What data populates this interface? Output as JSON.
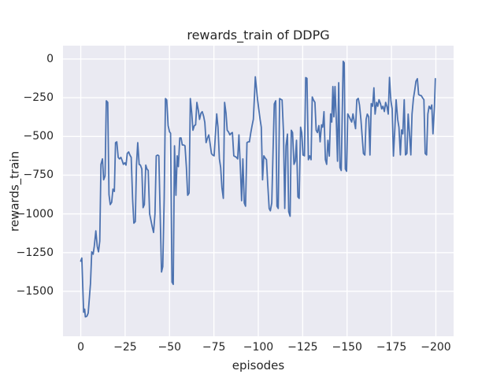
{
  "figure": {
    "title": "rewards_train of DDPG",
    "xlabel": "episodes",
    "ylabel": "rewards_train"
  },
  "colors": {
    "figure_background": "#ffffff",
    "axes_background": "#eaeaf2",
    "grid": "#ffffff",
    "line": "#4c72b0",
    "text": "#262626"
  },
  "chart_data": {
    "type": "line",
    "title": "rewards_train of DDPG",
    "xlabel": "episodes",
    "ylabel": "rewards_train",
    "series_name": "rewards_train",
    "legend": false,
    "grid": true,
    "xlim": [
      -10,
      210
    ],
    "ylim": [
      -1790,
      86
    ],
    "xticks": [
      0,
      25,
      50,
      75,
      100,
      125,
      150,
      175,
      200
    ],
    "yticks": [
      0,
      -250,
      -500,
      -750,
      -1000,
      -1250,
      -1500
    ],
    "points": [
      [
        0,
        -1305
      ],
      [
        0.6,
        -1285
      ],
      [
        1.6,
        -1635
      ],
      [
        2.2,
        -1615
      ],
      [
        2.6,
        -1665
      ],
      [
        3.5,
        -1660
      ],
      [
        4.2,
        -1640
      ],
      [
        5.5,
        -1450
      ],
      [
        6.2,
        -1245
      ],
      [
        7,
        -1260
      ],
      [
        7.6,
        -1210
      ],
      [
        8.5,
        -1110
      ],
      [
        9.3,
        -1210
      ],
      [
        10,
        -1245
      ],
      [
        10.7,
        -1175
      ],
      [
        11.4,
        -680
      ],
      [
        12.2,
        -645
      ],
      [
        12.9,
        -780
      ],
      [
        13.7,
        -755
      ],
      [
        14.4,
        -270
      ],
      [
        15.2,
        -280
      ],
      [
        15.9,
        -875
      ],
      [
        16.6,
        -940
      ],
      [
        17.4,
        -925
      ],
      [
        18.1,
        -840
      ],
      [
        18.9,
        -855
      ],
      [
        19.6,
        -540
      ],
      [
        20.3,
        -535
      ],
      [
        21.1,
        -635
      ],
      [
        21.8,
        -645
      ],
      [
        22.6,
        -635
      ],
      [
        23.3,
        -655
      ],
      [
        24,
        -680
      ],
      [
        24.8,
        -670
      ],
      [
        25.5,
        -685
      ],
      [
        26.2,
        -610
      ],
      [
        27,
        -600
      ],
      [
        27.7,
        -620
      ],
      [
        28.4,
        -635
      ],
      [
        29.2,
        -905
      ],
      [
        29.9,
        -1060
      ],
      [
        30.7,
        -1050
      ],
      [
        31.4,
        -685
      ],
      [
        32.1,
        -540
      ],
      [
        32.9,
        -680
      ],
      [
        33.6,
        -685
      ],
      [
        34.4,
        -710
      ],
      [
        35.1,
        -960
      ],
      [
        35.8,
        -940
      ],
      [
        36.6,
        -685
      ],
      [
        37.3,
        -710
      ],
      [
        38,
        -720
      ],
      [
        38.8,
        -1000
      ],
      [
        40.3,
        -1085
      ],
      [
        41,
        -1120
      ],
      [
        41.8,
        -1000
      ],
      [
        42.5,
        -625
      ],
      [
        43.3,
        -620
      ],
      [
        44,
        -625
      ],
      [
        45.5,
        -1375
      ],
      [
        46.2,
        -1340
      ],
      [
        47,
        -900
      ],
      [
        47.7,
        -255
      ],
      [
        48.4,
        -265
      ],
      [
        49.2,
        -430
      ],
      [
        50,
        -470
      ],
      [
        50.6,
        -480
      ],
      [
        51.4,
        -1440
      ],
      [
        52.1,
        -1455
      ],
      [
        52.8,
        -560
      ],
      [
        53.6,
        -880
      ],
      [
        54.3,
        -625
      ],
      [
        55,
        -695
      ],
      [
        55.8,
        -510
      ],
      [
        56.5,
        -510
      ],
      [
        57.2,
        -555
      ],
      [
        58,
        -555
      ],
      [
        58.7,
        -560
      ],
      [
        59.5,
        -700
      ],
      [
        60.2,
        -880
      ],
      [
        61,
        -865
      ],
      [
        61.7,
        -255
      ],
      [
        62.5,
        -350
      ],
      [
        63.2,
        -460
      ],
      [
        64,
        -430
      ],
      [
        64.7,
        -425
      ],
      [
        65.4,
        -280
      ],
      [
        66.2,
        -330
      ],
      [
        66.9,
        -390
      ],
      [
        67.7,
        -350
      ],
      [
        68.4,
        -340
      ],
      [
        69.2,
        -370
      ],
      [
        69.9,
        -410
      ],
      [
        70.6,
        -540
      ],
      [
        71.4,
        -510
      ],
      [
        72.1,
        -490
      ],
      [
        72.9,
        -550
      ],
      [
        73.6,
        -610
      ],
      [
        74.3,
        -620
      ],
      [
        75.1,
        -625
      ],
      [
        75.8,
        -500
      ],
      [
        76.6,
        -355
      ],
      [
        77.3,
        -440
      ],
      [
        78.1,
        -645
      ],
      [
        78.8,
        -700
      ],
      [
        79.5,
        -830
      ],
      [
        80.3,
        -900
      ],
      [
        81,
        -280
      ],
      [
        81.8,
        -350
      ],
      [
        82.5,
        -460
      ],
      [
        83.2,
        -470
      ],
      [
        84,
        -490
      ],
      [
        84.7,
        -480
      ],
      [
        85.4,
        -475
      ],
      [
        86.2,
        -625
      ],
      [
        86.9,
        -630
      ],
      [
        87.7,
        -635
      ],
      [
        88.4,
        -645
      ],
      [
        89.1,
        -490
      ],
      [
        89.9,
        -700
      ],
      [
        90.6,
        -915
      ],
      [
        91.3,
        -645
      ],
      [
        92.1,
        -930
      ],
      [
        92.8,
        -950
      ],
      [
        93.6,
        -540
      ],
      [
        94.3,
        -535
      ],
      [
        95,
        -535
      ],
      [
        95.8,
        -475
      ],
      [
        96.5,
        -430
      ],
      [
        97.2,
        -390
      ],
      [
        98,
        -200
      ],
      [
        98.3,
        -115
      ],
      [
        99,
        -190
      ],
      [
        99.5,
        -255
      ],
      [
        100.2,
        -320
      ],
      [
        101,
        -390
      ],
      [
        101.7,
        -440
      ],
      [
        102.4,
        -780
      ],
      [
        103.1,
        -625
      ],
      [
        103.9,
        -640
      ],
      [
        104.6,
        -650
      ],
      [
        105.3,
        -800
      ],
      [
        106.1,
        -965
      ],
      [
        106.8,
        -980
      ],
      [
        107.6,
        -930
      ],
      [
        108.3,
        -600
      ],
      [
        109,
        -290
      ],
      [
        109.8,
        -270
      ],
      [
        110.5,
        -950
      ],
      [
        111.2,
        -965
      ],
      [
        112,
        -255
      ],
      [
        112.7,
        -260
      ],
      [
        113.4,
        -265
      ],
      [
        114.2,
        -475
      ],
      [
        114.9,
        -965
      ],
      [
        115.6,
        -560
      ],
      [
        116.4,
        -485
      ],
      [
        117.1,
        -985
      ],
      [
        117.9,
        -1015
      ],
      [
        118.6,
        -460
      ],
      [
        119.3,
        -475
      ],
      [
        120.1,
        -680
      ],
      [
        120.8,
        -660
      ],
      [
        121.5,
        -525
      ],
      [
        122.3,
        -890
      ],
      [
        123,
        -900
      ],
      [
        123.8,
        -440
      ],
      [
        124.5,
        -475
      ],
      [
        125.2,
        -620
      ],
      [
        126,
        -625
      ],
      [
        126.7,
        -120
      ],
      [
        127.4,
        -125
      ],
      [
        128.2,
        -650
      ],
      [
        128.9,
        -625
      ],
      [
        129.7,
        -650
      ],
      [
        130.4,
        -245
      ],
      [
        131.1,
        -265
      ],
      [
        131.9,
        -280
      ],
      [
        132.6,
        -460
      ],
      [
        133.3,
        -475
      ],
      [
        134.1,
        -430
      ],
      [
        134.8,
        -535
      ],
      [
        135.6,
        -425
      ],
      [
        136.3,
        -440
      ],
      [
        137,
        -340
      ],
      [
        137.8,
        -650
      ],
      [
        138.5,
        -680
      ],
      [
        139.2,
        -525
      ],
      [
        140,
        -627
      ],
      [
        140.7,
        -355
      ],
      [
        141.4,
        -407
      ],
      [
        142,
        -178
      ],
      [
        142.6,
        -373
      ],
      [
        143.2,
        -178
      ],
      [
        143.9,
        -390
      ],
      [
        144.6,
        -660
      ],
      [
        145.3,
        -153
      ],
      [
        146,
        -700
      ],
      [
        146.7,
        -720
      ],
      [
        147.8,
        -15
      ],
      [
        148.4,
        -25
      ],
      [
        149,
        -710
      ],
      [
        149.7,
        -725
      ],
      [
        150.4,
        -355
      ],
      [
        151.1,
        -370
      ],
      [
        151.9,
        -390
      ],
      [
        152.6,
        -407
      ],
      [
        153.3,
        -355
      ],
      [
        154.1,
        -407
      ],
      [
        154.8,
        -450
      ],
      [
        155.5,
        -263
      ],
      [
        156.3,
        -254
      ],
      [
        157,
        -297
      ],
      [
        157.8,
        -390
      ],
      [
        158.5,
        -500
      ],
      [
        159.2,
        -610
      ],
      [
        160,
        -620
      ],
      [
        160.7,
        -390
      ],
      [
        161.4,
        -356
      ],
      [
        162.2,
        -373
      ],
      [
        162.9,
        -620
      ],
      [
        163.6,
        -288
      ],
      [
        164.4,
        -305
      ],
      [
        165.1,
        -186
      ],
      [
        165.8,
        -356
      ],
      [
        166.6,
        -280
      ],
      [
        167.3,
        -305
      ],
      [
        168,
        -263
      ],
      [
        168.8,
        -288
      ],
      [
        169.5,
        -322
      ],
      [
        170.2,
        -305
      ],
      [
        171,
        -339
      ],
      [
        171.7,
        -280
      ],
      [
        172.5,
        -310
      ],
      [
        173.2,
        -356
      ],
      [
        173.9,
        -119
      ],
      [
        174.7,
        -271
      ],
      [
        175.4,
        -322
      ],
      [
        176.1,
        -627
      ],
      [
        176.9,
        -450
      ],
      [
        177.6,
        -263
      ],
      [
        178.5,
        -390
      ],
      [
        179.2,
        -441
      ],
      [
        180,
        -619
      ],
      [
        180.7,
        -458
      ],
      [
        181.4,
        -483
      ],
      [
        182.2,
        -263
      ],
      [
        182.9,
        -619
      ],
      [
        183.7,
        -610
      ],
      [
        184.4,
        -356
      ],
      [
        185.1,
        -475
      ],
      [
        185.9,
        -619
      ],
      [
        186.6,
        -356
      ],
      [
        187.4,
        -254
      ],
      [
        188.1,
        -203
      ],
      [
        188.8,
        -144
      ],
      [
        189.6,
        -127
      ],
      [
        190.3,
        -229
      ],
      [
        191.1,
        -235
      ],
      [
        191.8,
        -237
      ],
      [
        192.5,
        -250
      ],
      [
        193.3,
        -263
      ],
      [
        194,
        -610
      ],
      [
        194.8,
        -619
      ],
      [
        195.5,
        -356
      ],
      [
        196.2,
        -305
      ],
      [
        197,
        -322
      ],
      [
        197.7,
        -297
      ],
      [
        198.4,
        -483
      ],
      [
        199.2,
        -305
      ],
      [
        199.7,
        -127
      ]
    ]
  }
}
